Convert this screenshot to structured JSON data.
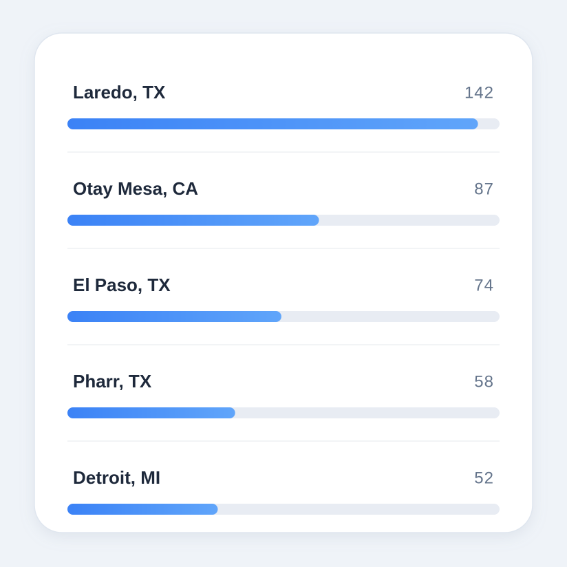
{
  "chart_data": {
    "type": "bar",
    "categories": [
      "Laredo, TX",
      "Otay Mesa, CA",
      "El Paso, TX",
      "Pharr, TX",
      "Detroit, MI"
    ],
    "values": [
      142,
      87,
      74,
      58,
      52
    ],
    "color": [
      "#3b82f6",
      "#60a5fa"
    ]
  }
}
